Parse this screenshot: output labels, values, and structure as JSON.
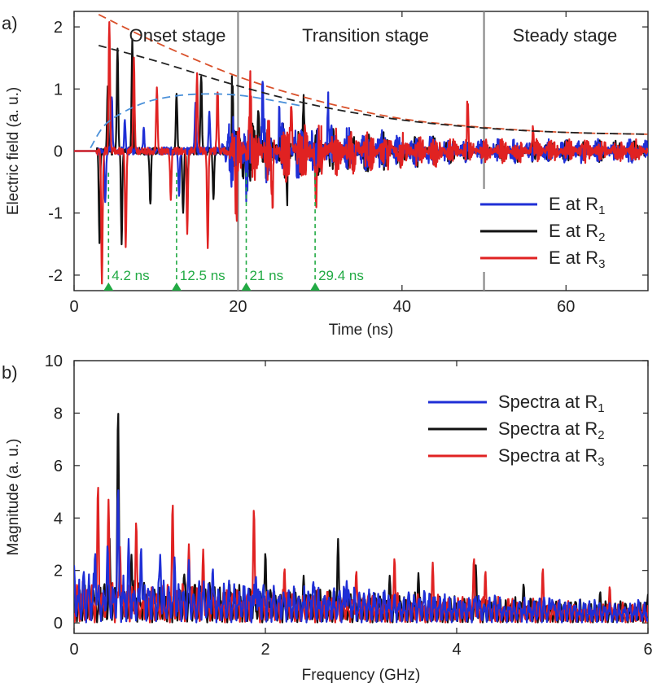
{
  "chart_data": [
    {
      "panel_label": "a)",
      "type": "line",
      "xlabel": "Time (ns)",
      "ylabel": "Electric field (a. u.)",
      "xlim": [
        0,
        70
      ],
      "ylim": [
        -2.25,
        2.25
      ],
      "xticks": [
        0,
        20,
        40,
        60
      ],
      "yticks": [
        -2,
        -1,
        0,
        1,
        2
      ],
      "xtick_labels": [
        "0",
        "20",
        "40",
        "60"
      ],
      "ytick_labels": [
        "-2",
        "-1",
        "0",
        "1",
        "2"
      ],
      "grid": false,
      "legend_position": "lower-right",
      "stages": [
        {
          "label": "Onset stage",
          "x_range": [
            0,
            20
          ]
        },
        {
          "label": "Transition stage",
          "x_range": [
            20,
            50
          ]
        },
        {
          "label": "Steady stage",
          "x_range": [
            50,
            70
          ]
        }
      ],
      "stage_boundaries": [
        20,
        50
      ],
      "markers": [
        {
          "x": 4.2,
          "label": "4.2 ns"
        },
        {
          "x": 12.5,
          "label": "12.5 ns"
        },
        {
          "x": 21,
          "label": "21 ns"
        },
        {
          "x": 29.4,
          "label": "29.4 ns"
        }
      ],
      "envelopes": [
        {
          "color": "#d9502a",
          "x": [
            3,
            10,
            20,
            30,
            40,
            50,
            60,
            70
          ],
          "y": [
            2.2,
            1.75,
            1.2,
            0.8,
            0.52,
            0.38,
            0.3,
            0.27
          ]
        },
        {
          "color": "#222222",
          "x": [
            3,
            10,
            20,
            30,
            40,
            50,
            60,
            70
          ],
          "y": [
            1.7,
            1.45,
            1.05,
            0.72,
            0.5,
            0.37,
            0.3,
            0.27
          ]
        },
        {
          "color": "#4a90d9",
          "x": [
            2,
            4,
            8,
            12,
            16,
            20,
            24,
            28
          ],
          "y": [
            0.05,
            0.45,
            0.75,
            0.88,
            0.92,
            0.9,
            0.82,
            0.72
          ]
        }
      ],
      "series": [
        {
          "name_prefix": "E at R",
          "name_sub": "1",
          "color": "#1f2fd6",
          "peaks": [
            [
              3.8,
              -0.85
            ],
            [
              4.6,
              0.9
            ],
            [
              6.2,
              0.5
            ],
            [
              8.5,
              0.35
            ],
            [
              12.8,
              -0.75
            ],
            [
              14.8,
              0.75
            ],
            [
              16.5,
              0.6
            ],
            [
              21,
              -0.6
            ],
            [
              23,
              0.8
            ],
            [
              25,
              0.65
            ],
            [
              29.4,
              -0.6
            ],
            [
              31,
              0.7
            ]
          ],
          "noise_start": 18,
          "noise_amp_start": 0.6,
          "noise_amp_end": 0.2
        },
        {
          "name_prefix": "E at R",
          "name_sub": "2",
          "color": "#111111",
          "peaks": [
            [
              3.1,
              -1.45
            ],
            [
              4.1,
              1.0
            ],
            [
              5.3,
              1.7
            ],
            [
              5.8,
              -1.45
            ],
            [
              7.1,
              1.75
            ],
            [
              9.3,
              -0.9
            ],
            [
              12.5,
              0.95
            ],
            [
              13.3,
              -1.0
            ],
            [
              13.8,
              -0.7
            ],
            [
              15.5,
              1.25
            ],
            [
              17.0,
              -0.75
            ],
            [
              19.3,
              0.95
            ],
            [
              20.6,
              -0.45
            ],
            [
              22.5,
              0.7
            ],
            [
              26,
              -0.6
            ],
            [
              28,
              0.7
            ]
          ],
          "noise_start": 19,
          "noise_amp_start": 0.55,
          "noise_amp_end": 0.18
        },
        {
          "name_prefix": "E at R",
          "name_sub": "3",
          "color": "#e02222",
          "peaks": [
            [
              3.4,
              -2.15
            ],
            [
              4.3,
              2.1
            ],
            [
              6.3,
              -1.5
            ],
            [
              7.3,
              1.45
            ],
            [
              10.1,
              1.0
            ],
            [
              11.8,
              -0.75
            ],
            [
              13.8,
              -1.3
            ],
            [
              15.0,
              1.25
            ],
            [
              16.3,
              -1.55
            ],
            [
              17.5,
              1.0
            ],
            [
              19.8,
              -0.9
            ],
            [
              21.5,
              1.05
            ],
            [
              24.2,
              -0.75
            ],
            [
              26.5,
              0.8
            ],
            [
              29.5,
              -0.7
            ],
            [
              48,
              0.75
            ],
            [
              56,
              0.45
            ]
          ],
          "noise_start": 19,
          "noise_amp_start": 0.6,
          "noise_amp_end": 0.2
        }
      ]
    },
    {
      "panel_label": "b)",
      "type": "line",
      "xlabel": "Frequency (GHz)",
      "ylabel": "Magnitude (a. u.)",
      "xlim": [
        0,
        6
      ],
      "ylim": [
        -0.4,
        10
      ],
      "xticks": [
        0,
        2,
        4,
        6
      ],
      "yticks": [
        0,
        2,
        4,
        6,
        8,
        10
      ],
      "xtick_labels": [
        "0",
        "2",
        "4",
        "6"
      ],
      "ytick_labels": [
        "0",
        "2",
        "4",
        "6",
        "8",
        "10"
      ],
      "grid": false,
      "legend_position": "top-right",
      "series": [
        {
          "name_prefix": "Spectra at R",
          "name_sub": "1",
          "color": "#1f2fd6",
          "peaks": [
            [
              0.0,
              2.2
            ],
            [
              0.1,
              2.0
            ],
            [
              0.22,
              2.7
            ],
            [
              0.35,
              3.0
            ],
            [
              0.46,
              5.2
            ],
            [
              0.57,
              3.2
            ],
            [
              0.7,
              2.9
            ],
            [
              0.9,
              2.6
            ],
            [
              1.05,
              2.5
            ],
            [
              1.2,
              2.4
            ],
            [
              1.45,
              2.1
            ],
            [
              1.9,
              1.8
            ],
            [
              2.5,
              1.6
            ],
            [
              2.85,
              1.6
            ],
            [
              3.5,
              1.2
            ],
            [
              4.2,
              1.0
            ],
            [
              5.0,
              0.9
            ],
            [
              5.9,
              0.9
            ]
          ],
          "noise_amp_start": 1.5,
          "noise_amp_end": 0.6
        },
        {
          "name_prefix": "Spectra at R",
          "name_sub": "2",
          "color": "#111111",
          "peaks": [
            [
              0.46,
              8.2
            ],
            [
              0.37,
              3.3
            ],
            [
              0.6,
              2.6
            ],
            [
              1.15,
              1.9
            ],
            [
              1.35,
              2.0
            ],
            [
              2.0,
              2.7
            ],
            [
              2.4,
              1.8
            ],
            [
              2.76,
              3.2
            ],
            [
              3.3,
              1.8
            ],
            [
              3.6,
              1.9
            ],
            [
              4.2,
              2.2
            ],
            [
              4.7,
              1.5
            ],
            [
              5.5,
              1.2
            ],
            [
              6.0,
              1.1
            ]
          ],
          "noise_amp_start": 1.4,
          "noise_amp_end": 0.6
        },
        {
          "name_prefix": "Spectra at R",
          "name_sub": "3",
          "color": "#e02222",
          "peaks": [
            [
              0.25,
              5.3
            ],
            [
              0.36,
              4.7
            ],
            [
              0.48,
              2.9
            ],
            [
              0.65,
              3.9
            ],
            [
              1.03,
              4.6
            ],
            [
              1.2,
              3.0
            ],
            [
              1.35,
              2.8
            ],
            [
              1.88,
              4.4
            ],
            [
              2.2,
              2.1
            ],
            [
              2.95,
              2.0
            ],
            [
              3.35,
              2.5
            ],
            [
              3.75,
              2.3
            ],
            [
              4.18,
              2.5
            ],
            [
              4.3,
              2.0
            ],
            [
              4.9,
              2.1
            ],
            [
              5.6,
              1.4
            ]
          ],
          "noise_amp_start": 1.3,
          "noise_amp_end": 0.6
        }
      ]
    }
  ]
}
